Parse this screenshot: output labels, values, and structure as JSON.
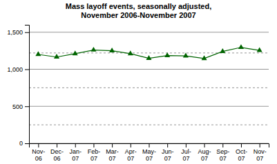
{
  "chart_data": {
    "type": "line",
    "title": "Mass layoff events, seasonally adjusted,\nNovember 2006-November 2007",
    "categories": [
      "Nov-\n06",
      "Dec-\n06",
      "Jan-\n07",
      "Feb-\n07",
      "Mar-\n07",
      "Apr-\n07",
      "May-\n07",
      "Jun-\n07",
      "Jul-\n07",
      "Aug-\n07",
      "Sep-\n07",
      "Oct-\n07",
      "Nov-\n07"
    ],
    "values": [
      1200,
      1165,
      1210,
      1260,
      1250,
      1210,
      1148,
      1185,
      1180,
      1145,
      1240,
      1295,
      1255
    ],
    "color": "#006400",
    "marker": "triangle",
    "ylim": [
      0,
      1600
    ],
    "yticks": [
      0,
      500,
      {
        "value": 1000,
        "label": "1,000"
      },
      {
        "value": 1500,
        "label": "1,500"
      }
    ],
    "dashed_lines": [
      250,
      750,
      1220
    ],
    "grid": true
  }
}
